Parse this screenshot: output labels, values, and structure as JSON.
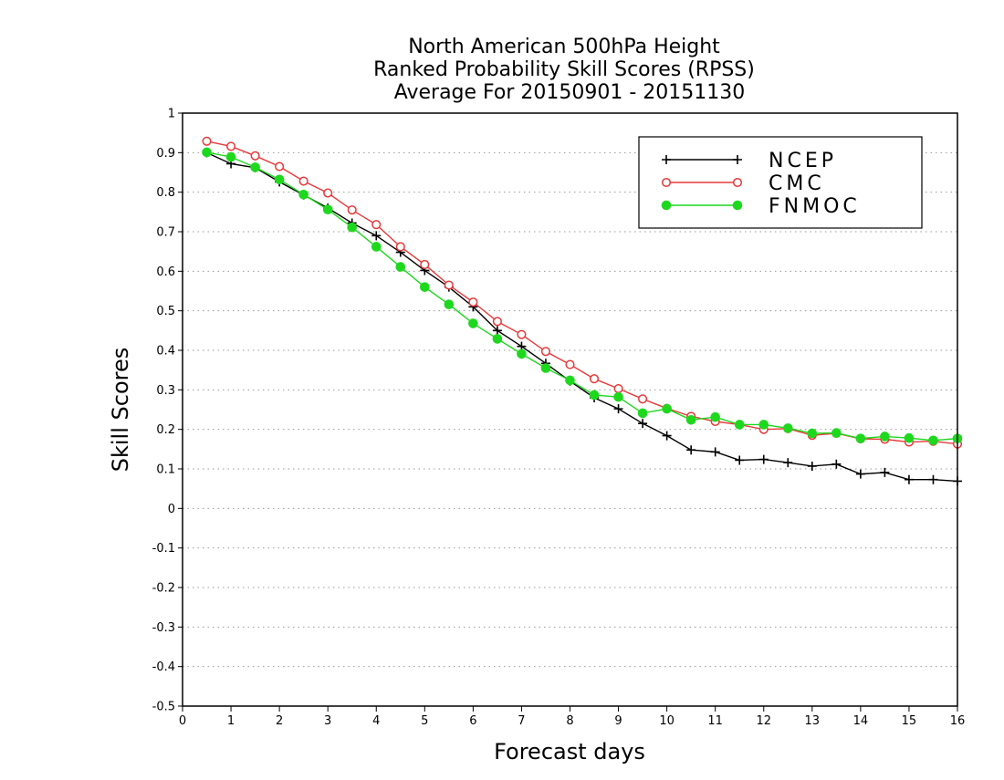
{
  "title_lines": [
    "North American 500hPa Height",
    "Ranked Probability Skill Scores (RPSS)",
    "Average For 20150901 - 20151130"
  ],
  "chart_data": {
    "type": "line",
    "title": "North American 500hPa Height / Ranked Probability Skill Scores (RPSS) / Average For 20150901 - 20151130",
    "xlabel": "Forecast days",
    "ylabel": "Skill Scores",
    "xlim": [
      0,
      16
    ],
    "ylim": [
      -0.5,
      1
    ],
    "x_ticks": [
      "0",
      "1",
      "2",
      "3",
      "4",
      "5",
      "6",
      "7",
      "8",
      "9",
      "10",
      "11",
      "12",
      "13",
      "14",
      "15",
      "16"
    ],
    "y_ticks": [
      "-0.5",
      "-0.4",
      "-0.3",
      "-0.2",
      "-0.1",
      "0",
      "0.1",
      "0.2",
      "0.3",
      "0.4",
      "0.5",
      "0.6",
      "0.7",
      "0.8",
      "0.9",
      "1"
    ],
    "grid": "horizontal dotted",
    "legend_position": "top-right",
    "x": [
      0.5,
      1,
      1.5,
      2,
      2.5,
      3,
      3.5,
      4,
      4.5,
      5,
      5.5,
      6,
      6.5,
      7,
      7.5,
      8,
      8.5,
      9,
      9.5,
      10,
      10.5,
      11,
      11.5,
      12,
      12.5,
      13,
      13.5,
      14,
      14.5,
      15,
      15.5,
      16
    ],
    "series": [
      {
        "name": "NCEP",
        "color": "#000000",
        "marker": "plus",
        "values": [
          0.9,
          0.872,
          0.862,
          0.826,
          0.793,
          0.76,
          0.722,
          0.69,
          0.648,
          0.602,
          0.56,
          0.51,
          0.45,
          0.41,
          0.367,
          0.322,
          0.28,
          0.252,
          0.215,
          0.184,
          0.148,
          0.143,
          0.122,
          0.124,
          0.116,
          0.107,
          0.112,
          0.087,
          0.091,
          0.073,
          0.073,
          0.069
        ]
      },
      {
        "name": "CMC",
        "color": "#e8393a",
        "marker": "open-circle",
        "values": [
          0.929,
          0.916,
          0.892,
          0.865,
          0.828,
          0.798,
          0.755,
          0.718,
          0.662,
          0.617,
          0.565,
          0.522,
          0.473,
          0.44,
          0.397,
          0.364,
          0.328,
          0.303,
          0.277,
          0.253,
          0.233,
          0.22,
          0.212,
          0.2,
          0.202,
          0.185,
          0.19,
          0.176,
          0.175,
          0.168,
          0.17,
          0.163
        ]
      },
      {
        "name": "FNMOC",
        "color": "#1ed81e",
        "marker": "filled-circle",
        "values": [
          0.901,
          0.889,
          0.863,
          0.832,
          0.794,
          0.756,
          0.711,
          0.662,
          0.611,
          0.56,
          0.516,
          0.468,
          0.429,
          0.391,
          0.355,
          0.324,
          0.287,
          0.282,
          0.241,
          0.252,
          0.224,
          0.231,
          0.212,
          0.212,
          0.203,
          0.19,
          0.191,
          0.177,
          0.182,
          0.178,
          0.172,
          0.177
        ]
      }
    ]
  }
}
